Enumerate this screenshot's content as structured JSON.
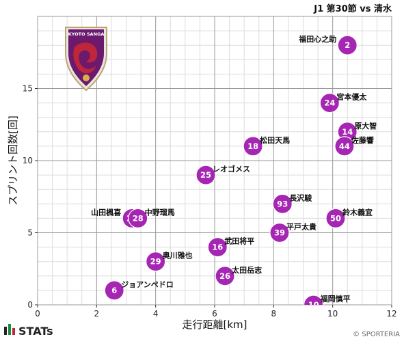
{
  "chart_data": {
    "type": "scatter",
    "title": "J1 第30節 vs 清水",
    "xlabel": "走行距離[km]",
    "ylabel": "スプリント回数[回]",
    "xlim": [
      0,
      12
    ],
    "ylim": [
      0,
      20
    ],
    "x_ticks": [
      "0",
      "2",
      "4",
      "6",
      "8",
      "10",
      "12"
    ],
    "y_ticks": [
      "0",
      "5",
      "10",
      "15"
    ],
    "grid": true,
    "marker_color": "#a526b3",
    "points": [
      {
        "number": "2",
        "name": "福田心之助",
        "x": 10.5,
        "y": 18
      },
      {
        "number": "24",
        "name": "宮本優太",
        "x": 9.9,
        "y": 14
      },
      {
        "number": "14",
        "name": "原大智",
        "x": 10.5,
        "y": 12
      },
      {
        "number": "44",
        "name": "佐藤響",
        "x": 10.4,
        "y": 11
      },
      {
        "number": "18",
        "name": "松田天馬",
        "x": 7.3,
        "y": 11
      },
      {
        "number": "25",
        "name": "レオゴメス",
        "x": 5.7,
        "y": 9
      },
      {
        "number": "93",
        "name": "長沢駿",
        "x": 8.3,
        "y": 7
      },
      {
        "number": "50",
        "name": "鈴木義宜",
        "x": 10.1,
        "y": 6
      },
      {
        "number": "27",
        "name": "山田楓喜",
        "x": 3.2,
        "y": 6
      },
      {
        "number": "28",
        "name": "中野瑠馬",
        "x": 3.4,
        "y": 6
      },
      {
        "number": "39",
        "name": "平戸太貴",
        "x": 8.2,
        "y": 5
      },
      {
        "number": "16",
        "name": "武田将平",
        "x": 6.1,
        "y": 4
      },
      {
        "number": "29",
        "name": "奥川雅也",
        "x": 4.0,
        "y": 3
      },
      {
        "number": "26",
        "name": "太田岳志",
        "x": 6.35,
        "y": 2
      },
      {
        "number": "6",
        "name": "ジョアンペドロ",
        "x": 2.6,
        "y": 1
      },
      {
        "number": "10",
        "name": "福岡慎平",
        "x": 9.35,
        "y": 0
      }
    ]
  },
  "logo": {
    "text": "KYOTO SANGA"
  },
  "footer": {
    "brand": "STATs",
    "credit": "© SPORTERIA"
  }
}
